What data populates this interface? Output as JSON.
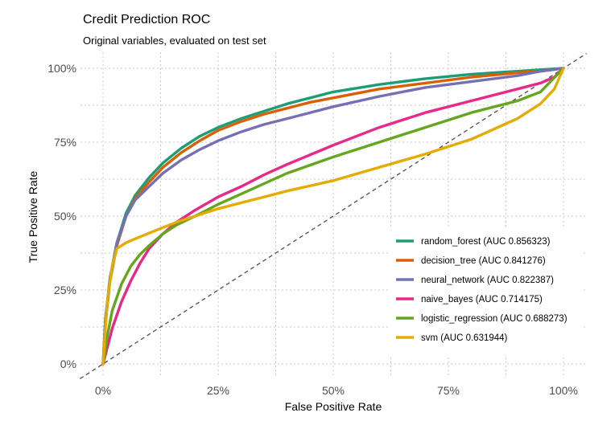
{
  "chart_data": {
    "type": "line",
    "title": "Credit Prediction ROC",
    "subtitle": "Original variables, evaluated on test set",
    "xlabel": "False Positive Rate",
    "ylabel": "True Positive Rate",
    "xlim": [
      0,
      1
    ],
    "ylim": [
      0,
      1
    ],
    "x_ticks": [
      {
        "value": 0,
        "label": "0%"
      },
      {
        "value": 0.25,
        "label": "25%"
      },
      {
        "value": 0.5,
        "label": "50%"
      },
      {
        "value": 0.75,
        "label": "75%"
      },
      {
        "value": 1,
        "label": "100%"
      }
    ],
    "y_ticks": [
      {
        "value": 0,
        "label": "0%"
      },
      {
        "value": 0.25,
        "label": "25%"
      },
      {
        "value": 0.5,
        "label": "50%"
      },
      {
        "value": 0.75,
        "label": "75%"
      },
      {
        "value": 1,
        "label": "100%"
      }
    ],
    "grid": true,
    "reference_line": "diagonal-dashed",
    "legend_position": "bottom-right",
    "series": [
      {
        "name": "random_forest (AUC 0.856323)",
        "color": "#1b9e77",
        "x": [
          0,
          0.005,
          0.015,
          0.03,
          0.05,
          0.07,
          0.1,
          0.13,
          0.17,
          0.21,
          0.25,
          0.3,
          0.35,
          0.4,
          0.45,
          0.5,
          0.6,
          0.7,
          0.8,
          0.9,
          0.95,
          1
        ],
        "y": [
          0,
          0.15,
          0.29,
          0.41,
          0.51,
          0.57,
          0.63,
          0.68,
          0.73,
          0.77,
          0.8,
          0.83,
          0.855,
          0.88,
          0.9,
          0.92,
          0.945,
          0.965,
          0.98,
          0.99,
          0.995,
          1
        ]
      },
      {
        "name": "decision_tree (AUC 0.841276)",
        "color": "#d95f02",
        "x": [
          0,
          0.005,
          0.015,
          0.03,
          0.05,
          0.07,
          0.1,
          0.13,
          0.17,
          0.21,
          0.25,
          0.3,
          0.35,
          0.4,
          0.45,
          0.5,
          0.6,
          0.7,
          0.8,
          0.9,
          0.95,
          1
        ],
        "y": [
          0,
          0.14,
          0.28,
          0.4,
          0.5,
          0.56,
          0.615,
          0.665,
          0.715,
          0.755,
          0.79,
          0.82,
          0.845,
          0.865,
          0.885,
          0.9,
          0.93,
          0.95,
          0.97,
          0.985,
          0.99,
          1
        ]
      },
      {
        "name": "neural_network (AUC 0.822387)",
        "color": "#7570b3",
        "x": [
          0,
          0.005,
          0.015,
          0.03,
          0.05,
          0.07,
          0.1,
          0.13,
          0.17,
          0.21,
          0.25,
          0.3,
          0.35,
          0.4,
          0.5,
          0.6,
          0.7,
          0.8,
          0.9,
          0.95,
          1
        ],
        "y": [
          0,
          0.14,
          0.28,
          0.41,
          0.5,
          0.555,
          0.6,
          0.645,
          0.69,
          0.725,
          0.755,
          0.785,
          0.81,
          0.83,
          0.87,
          0.905,
          0.935,
          0.955,
          0.975,
          0.99,
          1
        ]
      },
      {
        "name": "naive_bayes (AUC 0.714175)",
        "color": "#e7298a",
        "x": [
          0,
          0.01,
          0.02,
          0.04,
          0.06,
          0.08,
          0.1,
          0.13,
          0.16,
          0.2,
          0.25,
          0.3,
          0.35,
          0.4,
          0.5,
          0.6,
          0.7,
          0.8,
          0.9,
          0.95,
          0.98,
          1
        ],
        "y": [
          0,
          0.06,
          0.12,
          0.21,
          0.28,
          0.34,
          0.39,
          0.44,
          0.48,
          0.52,
          0.565,
          0.6,
          0.64,
          0.675,
          0.74,
          0.8,
          0.85,
          0.89,
          0.93,
          0.95,
          0.97,
          1
        ]
      },
      {
        "name": "logistic_regression (AUC 0.688273)",
        "color": "#66a61e",
        "x": [
          0,
          0.01,
          0.02,
          0.04,
          0.06,
          0.08,
          0.1,
          0.13,
          0.16,
          0.2,
          0.25,
          0.3,
          0.35,
          0.4,
          0.5,
          0.6,
          0.7,
          0.8,
          0.9,
          0.95,
          1
        ],
        "y": [
          0,
          0.1,
          0.18,
          0.27,
          0.33,
          0.37,
          0.4,
          0.44,
          0.47,
          0.5,
          0.54,
          0.575,
          0.61,
          0.645,
          0.7,
          0.75,
          0.8,
          0.85,
          0.89,
          0.92,
          1
        ]
      },
      {
        "name": "svm (AUC 0.631944)",
        "color": "#e6ab02",
        "x": [
          0,
          0.005,
          0.01,
          0.02,
          0.03,
          0.05,
          0.08,
          0.12,
          0.16,
          0.2,
          0.25,
          0.3,
          0.35,
          0.4,
          0.5,
          0.6,
          0.7,
          0.8,
          0.9,
          0.95,
          0.98,
          1
        ],
        "y": [
          0,
          0.12,
          0.22,
          0.33,
          0.39,
          0.41,
          0.43,
          0.455,
          0.48,
          0.5,
          0.525,
          0.545,
          0.565,
          0.585,
          0.62,
          0.665,
          0.71,
          0.76,
          0.83,
          0.88,
          0.93,
          1
        ]
      }
    ]
  }
}
